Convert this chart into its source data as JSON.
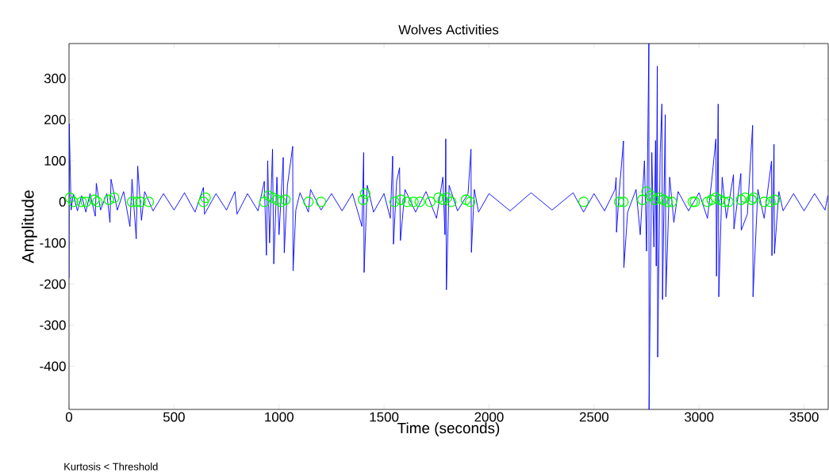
{
  "chart_data": {
    "type": "line",
    "title": "Wolves Activities",
    "xlabel": "Time (seconds)",
    "ylabel": "Amplitude",
    "annotations": [
      "Kurtosis < Threshold"
    ],
    "xlim": [
      0,
      3615
    ],
    "ylim": [
      -505,
      385
    ],
    "xticks": [
      0,
      500,
      1000,
      1500,
      2000,
      2500,
      3000,
      3500
    ],
    "yticks": [
      -400,
      -300,
      -200,
      -100,
      0,
      100,
      200,
      300
    ],
    "grid": false,
    "series": [
      {
        "color": "#0000ff",
        "marker": "none",
        "line_style": "solid",
        "x": [
          0,
          1,
          10,
          20,
          40,
          60,
          80,
          100,
          125,
          130,
          150,
          180,
          195,
          200,
          230,
          260,
          290,
          300,
          320,
          327,
          345,
          360,
          400,
          450,
          500,
          550,
          600,
          640,
          645,
          700,
          750,
          790,
          800,
          850,
          900,
          930,
          940,
          946,
          955,
          969,
          975,
          990,
          1000,
          1020,
          1025,
          1040,
          1065,
          1067,
          1080,
          1100,
          1140,
          1150,
          1200,
          1250,
          1300,
          1350,
          1395,
          1403,
          1405,
          1420,
          1450,
          1500,
          1530,
          1541,
          1545,
          1560,
          1574,
          1578,
          1600,
          1650,
          1700,
          1750,
          1780,
          1790,
          1794,
          1797,
          1810,
          1850,
          1900,
          1914,
          1916,
          1930,
          1950,
          2000,
          2100,
          2200,
          2300,
          2400,
          2450,
          2500,
          2550,
          2600,
          2605,
          2607,
          2620,
          2640,
          2642,
          2660,
          2700,
          2720,
          2740,
          2750,
          2761,
          2762,
          2775,
          2785,
          2793,
          2796,
          2801,
          2803,
          2815,
          2823,
          2826,
          2839,
          2842,
          2860,
          2880,
          2900,
          2950,
          3000,
          3040,
          3060,
          3080,
          3083,
          3091,
          3094,
          3110,
          3130,
          3164,
          3166,
          3199,
          3201,
          3230,
          3255,
          3257,
          3280,
          3310,
          3345,
          3347,
          3357,
          3359,
          3380,
          3400,
          3450,
          3500,
          3550,
          3600,
          3613
        ],
        "values": [
          -185,
          190,
          -20,
          18,
          -22,
          15,
          -25,
          20,
          -35,
          45,
          -20,
          20,
          -50,
          55,
          -20,
          25,
          -60,
          55,
          -90,
          87,
          -45,
          25,
          -22,
          20,
          -20,
          22,
          -25,
          35,
          -30,
          20,
          -20,
          25,
          -30,
          20,
          -22,
          50,
          -130,
          100,
          -100,
          128,
          -151,
          60,
          -80,
          108,
          -124,
          40,
          135,
          -168,
          -20,
          22,
          -25,
          30,
          -20,
          20,
          -22,
          20,
          -60,
          120,
          -172,
          40,
          -25,
          20,
          -40,
          111,
          -103,
          50,
          83,
          -94,
          30,
          -25,
          25,
          -40,
          60,
          -80,
          153,
          -214,
          40,
          -22,
          20,
          128,
          -123,
          30,
          -25,
          20,
          -22,
          22,
          -20,
          22,
          -25,
          20,
          -22,
          30,
          59,
          -74,
          25,
          148,
          -160,
          -25,
          30,
          -80,
          100,
          -120,
          385,
          -505,
          120,
          -110,
          149,
          -156,
          330,
          -378,
          120,
          238,
          -238,
          212,
          -231,
          60,
          -50,
          25,
          -22,
          22,
          -40,
          50,
          153,
          -181,
          238,
          -231,
          60,
          -40,
          66,
          -66,
          69,
          -69,
          -30,
          186,
          -231,
          30,
          -40,
          99,
          -131,
          140,
          -126,
          25,
          -22,
          20,
          -22,
          20,
          -20,
          15
        ]
      },
      {
        "type": "scatter",
        "color": "#00ff00",
        "marker": "circle",
        "x": [
          5,
          20,
          60,
          80,
          120,
          135,
          190,
          215,
          300,
          320,
          340,
          380,
          640,
          650,
          930,
          950,
          970,
          990,
          1010,
          1030,
          1140,
          1200,
          1400,
          1410,
          1550,
          1580,
          1610,
          1640,
          1670,
          1720,
          1760,
          1780,
          1800,
          1820,
          1890,
          1910,
          2450,
          2620,
          2640,
          2730,
          2750,
          2770,
          2790,
          2810,
          2830,
          2850,
          2870,
          2970,
          2980,
          3040,
          3060,
          3080,
          3100,
          3120,
          3140,
          3200,
          3220,
          3250,
          3260,
          3310,
          3340,
          3360
        ],
        "values": [
          10,
          0,
          0,
          0,
          5,
          0,
          5,
          10,
          0,
          0,
          0,
          0,
          0,
          10,
          0,
          15,
          10,
          5,
          0,
          5,
          0,
          0,
          5,
          20,
          0,
          5,
          0,
          0,
          0,
          0,
          10,
          5,
          10,
          0,
          5,
          0,
          0,
          0,
          0,
          5,
          25,
          15,
          5,
          10,
          5,
          0,
          0,
          0,
          0,
          0,
          5,
          10,
          5,
          0,
          0,
          5,
          10,
          5,
          10,
          0,
          0,
          5
        ]
      }
    ]
  }
}
